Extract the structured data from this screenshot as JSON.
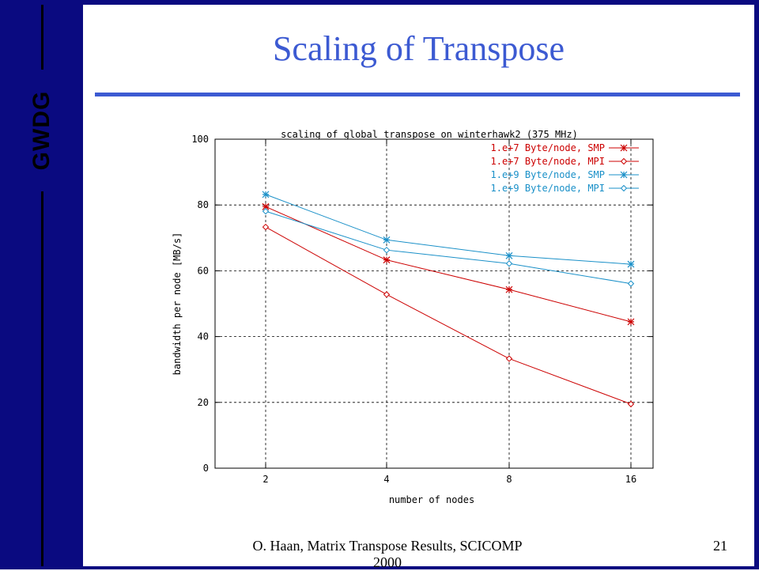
{
  "slide": {
    "logo": "GWDG",
    "title": "Scaling of Transpose",
    "footer": "O. Haan, Matrix Transpose Results, SCICOMP 2000",
    "page_number": "21",
    "colors": {
      "frame": "#0a0a80",
      "title": "#3c5ad2"
    }
  },
  "chart_data": {
    "type": "line",
    "title": "scaling of global transpose on winterhawk2 (375 MHz)",
    "xlabel": "number of nodes",
    "ylabel": "bandwidth per node [MB/s]",
    "categories": [
      "2",
      "4",
      "8",
      "16"
    ],
    "ylim": [
      0,
      100
    ],
    "yticks": [
      "0",
      "20",
      "40",
      "60",
      "80",
      "100"
    ],
    "grid": true,
    "legend_position": "top-right",
    "series": [
      {
        "name": "1.e+7 Byte/node, SMP",
        "marker": "star",
        "color": "#cc0000",
        "values": [
          79.5,
          63.3,
          54.3,
          44.5
        ]
      },
      {
        "name": "1.e+7 Byte/node, MPI",
        "marker": "diamond",
        "color": "#cc0000",
        "values": [
          73.3,
          52.8,
          33.3,
          19.5
        ]
      },
      {
        "name": "1.e+9 Byte/node, SMP",
        "marker": "star",
        "color": "#1a90c8",
        "values": [
          83.2,
          69.4,
          64.6,
          62.0
        ]
      },
      {
        "name": "1.e+9 Byte/node, MPI",
        "marker": "diamond",
        "color": "#1a90c8",
        "values": [
          78.1,
          66.3,
          62.2,
          56.1
        ]
      }
    ]
  }
}
